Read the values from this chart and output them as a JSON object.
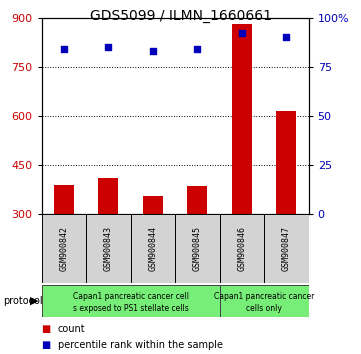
{
  "title": "GDS5099 / ILMN_1660661",
  "samples": [
    "GSM900842",
    "GSM900843",
    "GSM900844",
    "GSM900845",
    "GSM900846",
    "GSM900847"
  ],
  "counts": [
    390,
    410,
    355,
    385,
    880,
    615
  ],
  "percentile_ranks": [
    84,
    85,
    83,
    84,
    92,
    90
  ],
  "ylim_left": [
    300,
    900
  ],
  "ylim_right": [
    0,
    100
  ],
  "yticks_left": [
    300,
    450,
    600,
    750,
    900
  ],
  "yticks_right": [
    0,
    25,
    50,
    75,
    100
  ],
  "ytick_labels_right": [
    "0",
    "25",
    "50",
    "75",
    "100%"
  ],
  "bar_color": "#cc0000",
  "dot_color": "#0000bb",
  "bar_bottom": 300,
  "group1_label_line1": "Capan1 pancreatic cancer cell",
  "group1_label_line2": "s exposed to PS1 stellate cells",
  "group2_label_line1": "Capan1 pancreatic cancer",
  "group2_label_line2": "cells only",
  "group1_color": "#77ee77",
  "group2_color": "#77ee77",
  "protocol_label": "protocol",
  "legend_count_label": "count",
  "legend_percentile_label": "percentile rank within the sample",
  "grid_yticks": [
    450,
    600,
    750
  ],
  "ylabel_left_color": "#cc0000",
  "ylabel_right_color": "#0000bb",
  "sample_box_color": "#d3d3d3",
  "title_fontsize": 10,
  "tick_fontsize": 8,
  "sample_fontsize": 6,
  "protocol_fontsize": 5.5,
  "legend_fontsize": 7
}
